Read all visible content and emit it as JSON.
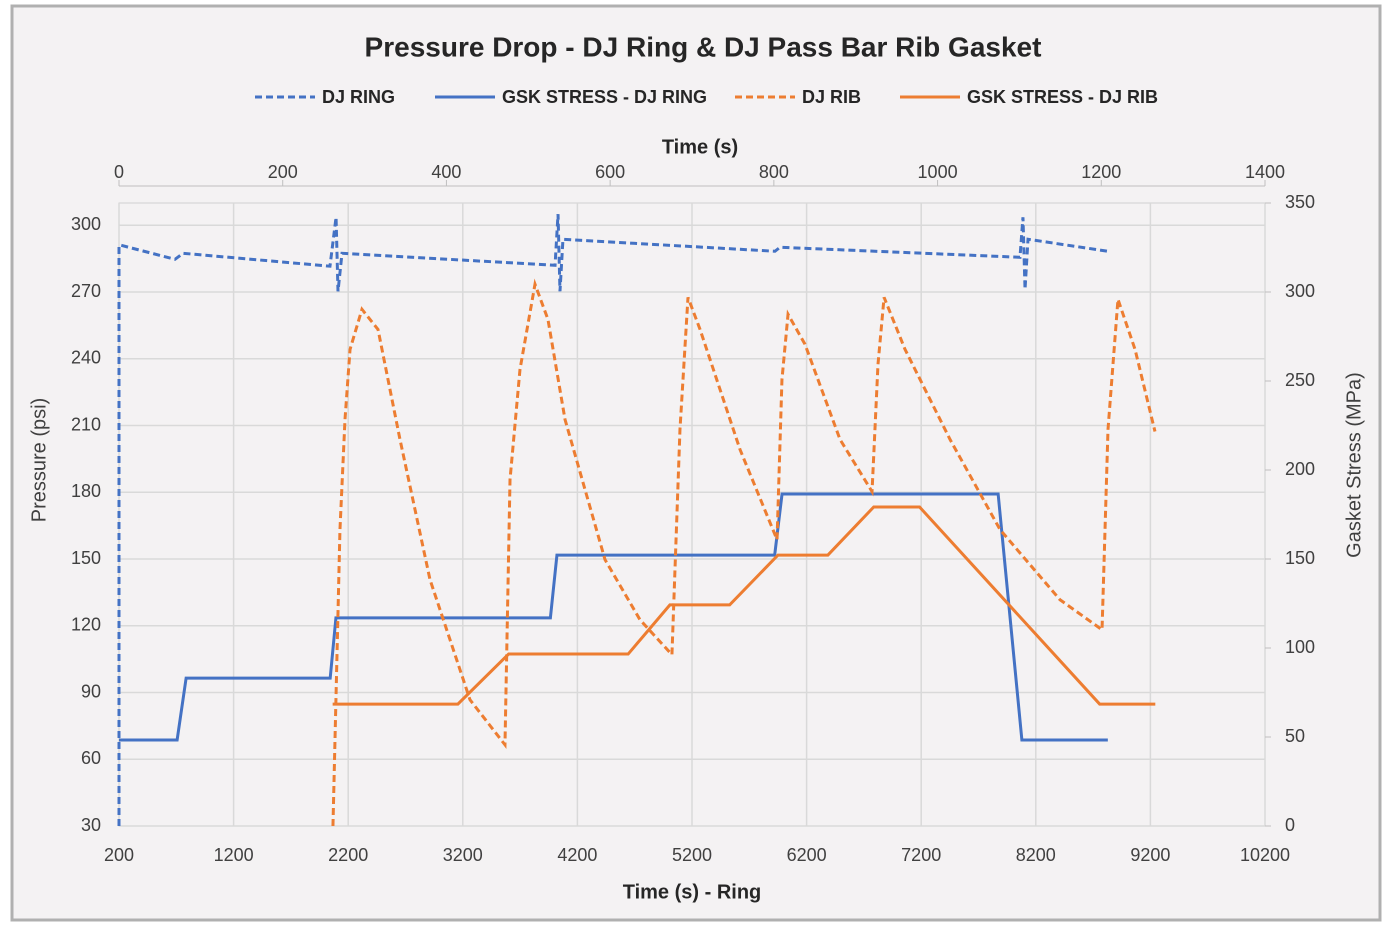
{
  "chart_data": {
    "type": "line",
    "title": "Pressure Drop - DJ Ring & DJ Pass Bar Rib Gasket",
    "xlabel": "Time (s) - Ring",
    "x2label": "Time (s)",
    "ylabel": "Pressure (psi)",
    "y2label": "Gasket Stress (MPa)",
    "xlim": [
      200,
      10200
    ],
    "xticks": [
      200,
      1200,
      2200,
      3200,
      4200,
      5200,
      6200,
      7200,
      8200,
      9200,
      10200
    ],
    "x2lim": [
      0,
      1400
    ],
    "x2ticks": [
      0,
      200,
      400,
      600,
      800,
      1000,
      1200,
      1400
    ],
    "ylim": [
      30,
      310
    ],
    "yticks": [
      30,
      60,
      90,
      120,
      150,
      180,
      210,
      240,
      270,
      300
    ],
    "y2lim": [
      0,
      350
    ],
    "y2ticks": [
      0,
      50,
      100,
      150,
      200,
      250,
      300,
      350
    ],
    "grid": true,
    "legend": "top",
    "series": [
      {
        "name": "DJ RING",
        "color": "#4472c4",
        "dashed": true,
        "axis": "y",
        "x": [
          200,
          200,
          217,
          689,
          759,
          2041,
          2094,
          2111,
          2146,
          4005,
          4031,
          4048,
          4074,
          5924,
          5968,
          8062,
          8088,
          8106,
          8132,
          8830
        ],
        "values": [
          30,
          291,
          291,
          284.7,
          287.4,
          281.6,
          303.6,
          270.3,
          287.4,
          282,
          305,
          270.3,
          293.7,
          288.3,
          290.1,
          285.6,
          303.6,
          271.2,
          293.7,
          288.3
        ]
      },
      {
        "name": "GSK STRESS - DJ RING",
        "color": "#4472c4",
        "dashed": false,
        "axis": "y2",
        "x": [
          0,
          71,
          82,
          258,
          265,
          527,
          535,
          801,
          810,
          1074,
          1103,
          1208
        ],
        "values": [
          48.3,
          48.3,
          83.1,
          83.1,
          116.9,
          116.9,
          152.2,
          152.2,
          186.5,
          186.5,
          48.3,
          48.3
        ]
      },
      {
        "name": "DJ RIB",
        "color": "#ed7d31",
        "dashed": true,
        "axis": "y",
        "x": [
          2067,
          2128,
          2172,
          2216,
          2320,
          2460,
          2652,
          2914,
          3263,
          3568,
          3612,
          3699,
          3830,
          3943,
          4092,
          4441,
          4746,
          5025,
          5095,
          5165,
          5270,
          5619,
          5942,
          5985,
          6038,
          6186,
          6492,
          6771,
          6823,
          6876,
          7059,
          7452,
          7888,
          8411,
          8778,
          8830,
          8917,
          9066,
          9240
        ],
        "values": [
          30,
          163,
          212.7,
          244.2,
          262.2,
          253.2,
          203.7,
          140.7,
          86.7,
          66.5,
          185.7,
          235.2,
          273.5,
          257.7,
          212.7,
          149.7,
          122.7,
          107,
          208.2,
          267.6,
          253.2,
          199.2,
          158.7,
          230.7,
          260,
          246.5,
          203.7,
          180.3,
          237.5,
          267.6,
          244.2,
          203.7,
          163.2,
          131.7,
          118.2,
          208.2,
          266.7,
          244.2,
          207.3
        ]
      },
      {
        "name": "GSK STRESS - DJ RIB",
        "color": "#ed7d31",
        "dashed": false,
        "axis": "y2",
        "x": [
          261,
          414,
          476,
          622,
          673,
          746,
          805,
          866,
          922,
          978,
          1198,
          1266
        ],
        "values": [
          68.5,
          68.5,
          96.6,
          96.6,
          124.2,
          124.2,
          152.2,
          152.2,
          179.2,
          179.2,
          68.5,
          68.5
        ]
      }
    ]
  }
}
